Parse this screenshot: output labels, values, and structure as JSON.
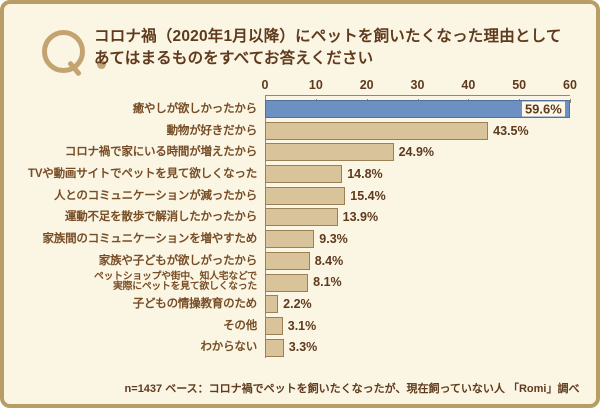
{
  "header": {
    "q_mark": "Q.",
    "title_line1": "コロナ禍（2020年1月以降）にペットを飼いたくなった理由として",
    "title_line2": "あてはまるものをすべてお答えください"
  },
  "chart_data": {
    "type": "bar",
    "orientation": "horizontal",
    "unit": "%",
    "xlim": [
      0,
      60
    ],
    "ticks": [
      0,
      10,
      20,
      30,
      40,
      50,
      60
    ],
    "grid": false,
    "legend": false,
    "categories": [
      "癒やしが欲しかったから",
      "動物が好きだから",
      "コロナ禍で家にいる時間が増えたから",
      "TVや動画サイトでペットを見て欲しくなった",
      "人とのコミュニケーションが減ったから",
      "運動不足を散歩で解消したかったから",
      "家族間のコミュニケーションを増やすため",
      "家族や子どもが欲しがったから",
      "ペットショップや街中、知人宅などで\n実際にペットを見て欲しくなった",
      "子どもの情操教育のため",
      "その他",
      "わからない"
    ],
    "values": [
      59.6,
      43.5,
      24.9,
      14.8,
      15.4,
      13.9,
      9.3,
      8.4,
      8.1,
      2.2,
      3.1,
      3.3
    ],
    "value_labels": [
      "59.6%",
      "43.5%",
      "24.9%",
      "14.8%",
      "15.4%",
      "13.9%",
      "9.3%",
      "8.4%",
      "8.1%",
      "2.2%",
      "3.1%",
      "3.3%"
    ],
    "highlight_index": 0,
    "small_label_index": 8,
    "colors": {
      "highlight_bar": "#6d90c3",
      "highlight_bar_border": "#50719e",
      "bar": "#d9c39b",
      "bar_border": "#9b8054",
      "text": "#5f3a1d",
      "label_text": "#774d26",
      "background": "#fbf5e4",
      "frame_border": "#b89e66",
      "q_mark": "#c3a470",
      "axis_line": "#97866a"
    }
  },
  "footer": {
    "note": "n=1437 ベース：コロナ禍でペットを飼いたくなったが、現在飼っていない人 「Romi」調べ"
  }
}
